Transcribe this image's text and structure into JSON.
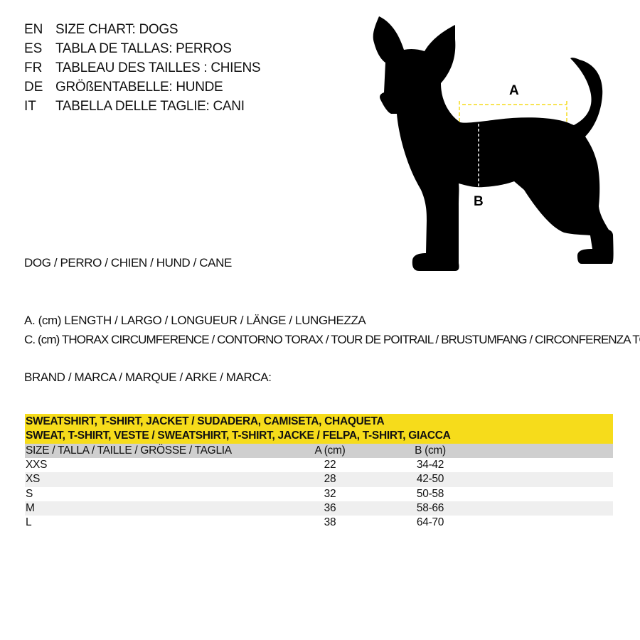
{
  "titles": [
    {
      "code": "EN",
      "text": "SIZE CHART: DOGS"
    },
    {
      "code": "ES",
      "text": "TABLA DE TALLAS: PERROS"
    },
    {
      "code": "FR",
      "text": "TABLEAU DES TAILLES : CHIENS"
    },
    {
      "code": "DE",
      "text": "GRÖßENTABELLE: HUNDE"
    },
    {
      "code": "IT",
      "text": "TABELLA DELLE TAGLIE: CANI"
    }
  ],
  "diagram": {
    "label_a": "A",
    "label_b": "B",
    "icon": "dog-silhouette-icon",
    "measure_color": "#f6dc1b"
  },
  "animal_line": "DOG / PERRO / CHIEN / HUND / CANE",
  "legend_a": "A. (cm) LENGTH / LARGO / LONGUEUR / LÄNGE / LUNGHEZZA",
  "legend_c": "C. (cm) THORAX CIRCUMFERENCE / CONTORNO TORAX / TOUR DE POITRAIL / BRUSTUMFANG / CIRCONFERENZA TORACE",
  "brand_line": "BRAND / MARCA / MARQUE / ARKE / MARCA:",
  "table": {
    "banner_line1": "SWEATSHIRT, T-SHIRT, JACKET / SUDADERA, CAMISETA, CHAQUETA",
    "banner_line2": "SWEAT, T-SHIRT, VESTE / SWEATSHIRT, T-SHIRT, JACKE / FELPA, T-SHIRT, GIACCA",
    "banner_color": "#f6dc1b",
    "headers": [
      "SIZE / TALLA / TAILLE / GRÖSSE / TAGLIA",
      "A (cm)",
      "B (cm)"
    ],
    "rows": [
      [
        "XXS",
        "22",
        "34-42"
      ],
      [
        "XS",
        "28",
        "42-50"
      ],
      [
        "S",
        "32",
        "50-58"
      ],
      [
        "M",
        "36",
        "58-66"
      ],
      [
        "L",
        "38",
        "64-70"
      ]
    ]
  }
}
